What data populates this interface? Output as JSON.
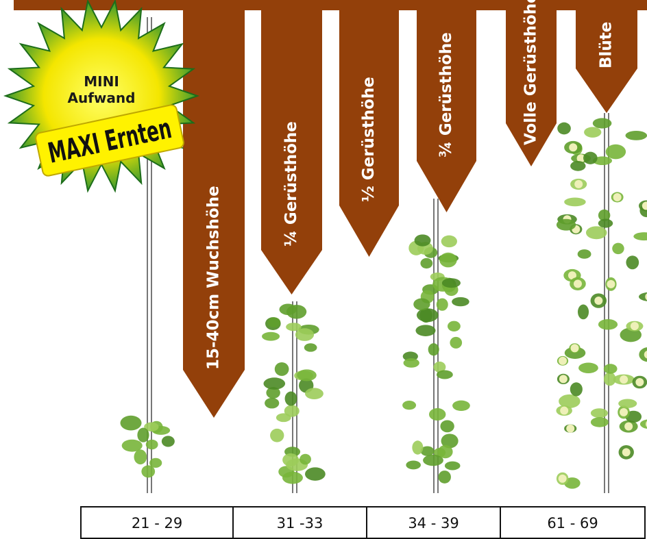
{
  "banners": [
    {
      "label": "15-40cm Wuchshöhe"
    },
    {
      "label": "¼ Gerüsthöhe"
    },
    {
      "label": "½ Gerüsthöhe"
    },
    {
      "label": "¾ Gerüsthöhe"
    },
    {
      "label": "Volle Gerüsthöhe"
    },
    {
      "label": "Blüte"
    }
  ],
  "badge": {
    "line1": "MINI",
    "line2": "Aufwand",
    "ribbon": "MAXI Ernten"
  },
  "table": {
    "cells": [
      "21 - 29",
      "31 -33",
      "34 - 39",
      "61 - 69"
    ]
  }
}
